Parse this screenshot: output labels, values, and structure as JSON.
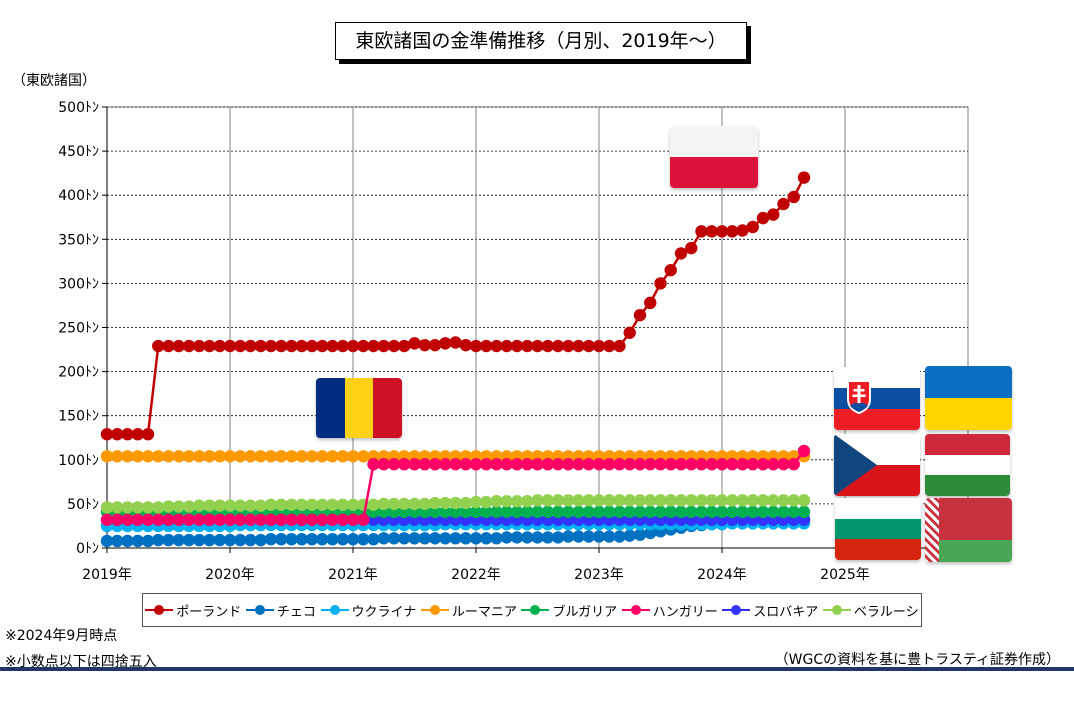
{
  "title": "東欧諸国の金準備推移（月別、2019年～）",
  "unit_label": "（東欧諸国）",
  "notes": [
    "※2024年9月時点",
    "※小数点以下は四捨五入"
  ],
  "source": "（WGCの資料を基に豊トラスティ証券作成）",
  "flags": [
    "poland-flag",
    "romania-flag",
    "slovakia-flag",
    "ukraine-flag",
    "czech-flag",
    "hungary-flag",
    "bulgaria-flag",
    "belarus-flag"
  ],
  "chart_data": {
    "type": "line",
    "title": "東欧諸国の金準備推移（月別、2019年～）",
    "ylabel": "（東欧諸国）",
    "ylim": [
      0,
      500
    ],
    "ytick_labels": [
      "0ﾄﾝ",
      "50ﾄﾝ",
      "100ﾄﾝ",
      "150ﾄﾝ",
      "200ﾄﾝ",
      "250ﾄﾝ",
      "300ﾄﾝ",
      "350ﾄﾝ",
      "400ﾄﾝ",
      "450ﾄﾝ",
      "500ﾄﾝ"
    ],
    "xtick_labels": [
      "2019年",
      "2020年",
      "2021年",
      "2022年",
      "2023年",
      "2024年",
      "2025年"
    ],
    "x_start": "2019-01",
    "x_end": "2024-09",
    "grid": true,
    "legend_position": "bottom",
    "series": [
      {
        "name": "ポーランド",
        "color": "#c00000",
        "values": [
          129,
          129,
          129,
          129,
          129,
          229,
          229,
          229,
          229,
          229,
          229,
          229,
          229,
          229,
          229,
          229,
          229,
          229,
          229,
          229,
          229,
          229,
          229,
          229,
          229,
          229,
          229,
          229,
          229,
          229,
          232,
          230,
          230,
          232,
          233,
          230,
          229,
          229,
          229,
          229,
          229,
          229,
          229,
          229,
          229,
          229,
          229,
          229,
          229,
          229,
          229,
          244,
          264,
          278,
          300,
          315,
          334,
          340,
          359,
          359,
          359,
          359,
          360,
          364,
          374,
          378,
          390,
          398,
          420
        ]
      },
      {
        "name": "チェコ",
        "color": "#0070c0",
        "values": [
          8,
          8,
          8,
          8,
          8,
          9,
          9,
          9,
          9,
          9,
          9,
          9,
          9,
          9,
          9,
          9,
          10,
          10,
          10,
          10,
          10,
          10,
          10,
          10,
          10,
          10,
          10,
          11,
          11,
          11,
          11,
          11,
          11,
          11,
          11,
          11,
          11,
          11,
          11,
          12,
          12,
          12,
          12,
          12,
          12,
          13,
          13,
          13,
          13,
          13,
          13,
          14,
          15,
          17,
          19,
          21,
          23,
          25,
          26,
          28,
          28,
          29,
          29,
          30,
          30,
          31,
          31,
          31,
          33
        ]
      },
      {
        "name": "ウクライナ",
        "color": "#00b0f0",
        "values": [
          25,
          25,
          25,
          25,
          25,
          25,
          25,
          25,
          25,
          25,
          25,
          25,
          25,
          26,
          26,
          26,
          26,
          26,
          26,
          26,
          26,
          26,
          26,
          26,
          26,
          26,
          26,
          26,
          26,
          26,
          26,
          26,
          26,
          27,
          27,
          27,
          27,
          27,
          27,
          27,
          27,
          27,
          27,
          27,
          27,
          27,
          27,
          27,
          27,
          27,
          27,
          27,
          27,
          27,
          27,
          27,
          27,
          27,
          27,
          27,
          27,
          28,
          28,
          28,
          28,
          28,
          28,
          28,
          28
        ]
      },
      {
        "name": "ルーマニア",
        "color": "#ff9900",
        "values": [
          104,
          104,
          104,
          104,
          104,
          104,
          104,
          104,
          104,
          104,
          104,
          104,
          104,
          104,
          104,
          104,
          104,
          104,
          104,
          104,
          104,
          104,
          104,
          104,
          104,
          104,
          104,
          104,
          104,
          104,
          104,
          104,
          104,
          104,
          104,
          104,
          104,
          104,
          104,
          104,
          104,
          104,
          104,
          104,
          104,
          104,
          104,
          104,
          104,
          104,
          104,
          104,
          104,
          104,
          104,
          104,
          104,
          104,
          104,
          104,
          104,
          104,
          104,
          104,
          104,
          104,
          104,
          104,
          104
        ]
      },
      {
        "name": "ブルガリア",
        "color": "#00b050",
        "values": [
          41,
          41,
          41,
          41,
          41,
          41,
          41,
          41,
          41,
          41,
          41,
          41,
          41,
          41,
          41,
          41,
          41,
          41,
          41,
          41,
          41,
          41,
          41,
          41,
          41,
          41,
          41,
          41,
          41,
          41,
          41,
          41,
          41,
          41,
          41,
          41,
          41,
          41,
          41,
          41,
          41,
          41,
          41,
          41,
          41,
          41,
          41,
          41,
          41,
          41,
          41,
          41,
          41,
          41,
          41,
          41,
          41,
          41,
          41,
          41,
          41,
          41,
          41,
          41,
          41,
          41,
          41,
          41,
          41
        ]
      },
      {
        "name": "ハンガリー",
        "color": "#ff0066",
        "values": [
          32,
          32,
          32,
          32,
          32,
          32,
          32,
          32,
          32,
          32,
          32,
          32,
          32,
          32,
          32,
          32,
          32,
          32,
          32,
          32,
          32,
          32,
          32,
          32,
          32,
          32,
          95,
          95,
          95,
          95,
          95,
          95,
          95,
          95,
          95,
          95,
          95,
          95,
          95,
          95,
          95,
          95,
          95,
          95,
          95,
          95,
          95,
          95,
          95,
          95,
          95,
          95,
          95,
          95,
          95,
          95,
          95,
          95,
          95,
          95,
          95,
          95,
          95,
          95,
          95,
          95,
          95,
          95,
          110
        ]
      },
      {
        "name": "スロバキア",
        "color": "#3333ff",
        "values": [
          32,
          32,
          32,
          32,
          32,
          32,
          32,
          32,
          32,
          32,
          32,
          32,
          32,
          32,
          32,
          32,
          32,
          32,
          32,
          32,
          32,
          32,
          32,
          32,
          32,
          32,
          32,
          32,
          32,
          32,
          32,
          32,
          32,
          32,
          32,
          32,
          32,
          32,
          32,
          32,
          32,
          32,
          32,
          32,
          32,
          32,
          32,
          32,
          32,
          32,
          32,
          32,
          32,
          32,
          32,
          32,
          32,
          32,
          32,
          32,
          32,
          32,
          32,
          32,
          32,
          32,
          32,
          32,
          32
        ]
      },
      {
        "name": "ベラルーシ",
        "color": "#92d050",
        "values": [
          46,
          46,
          46,
          46,
          46,
          46,
          47,
          47,
          47,
          48,
          48,
          48,
          48,
          48,
          48,
          48,
          49,
          49,
          49,
          49,
          49,
          49,
          49,
          49,
          49,
          49,
          49,
          50,
          50,
          50,
          50,
          50,
          51,
          51,
          51,
          51,
          52,
          52,
          53,
          53,
          53,
          53,
          54,
          54,
          54,
          54,
          54,
          54,
          54,
          54,
          54,
          54,
          54,
          54,
          54,
          54,
          54,
          54,
          54,
          54,
          54,
          54,
          54,
          54,
          54,
          54,
          54,
          54,
          54
        ]
      }
    ]
  }
}
